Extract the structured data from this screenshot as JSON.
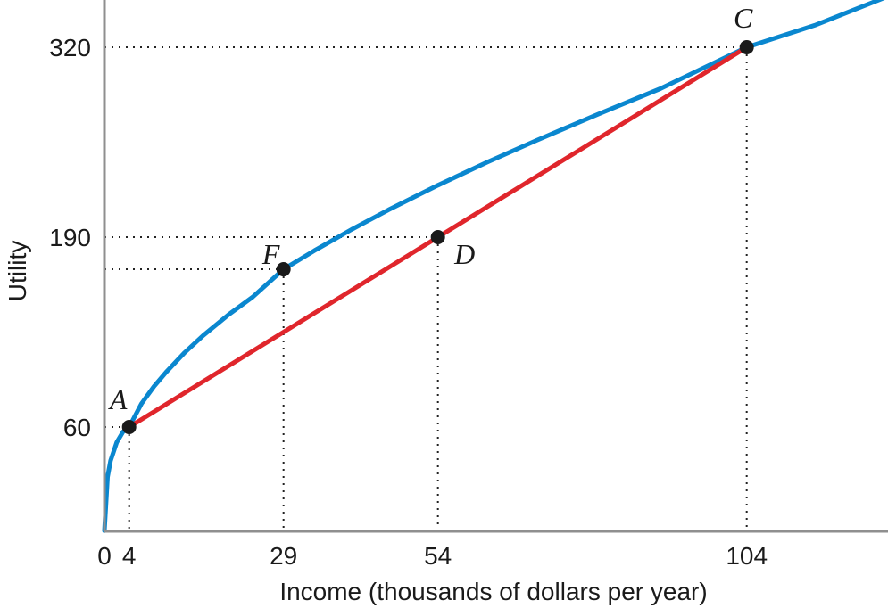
{
  "chart_data": {
    "type": "line",
    "xlabel": "Income (thousands of dollars per year)",
    "ylabel": "Utility",
    "x_ticks": [
      "0",
      "4",
      "29",
      "54",
      "104"
    ],
    "x_tick_values": [
      0,
      4,
      29,
      54,
      104
    ],
    "y_ticks": [
      "60",
      "190",
      "320"
    ],
    "y_tick_values": [
      60,
      190,
      320
    ],
    "xlim": [
      0,
      130
    ],
    "ylim": [
      -11,
      355
    ],
    "grid": false,
    "series": [
      {
        "color": "#0a87cf",
        "style": "curve",
        "x": [
          0,
          0.5,
          1,
          2,
          3,
          4,
          6,
          8,
          10,
          13,
          16,
          20,
          24,
          29,
          34,
          40,
          46,
          54,
          62,
          70,
          80,
          90,
          104,
          115,
          130
        ],
        "y": [
          -11,
          25.8,
          37,
          49.5,
          56.7,
          60,
          76,
          87.7,
          97.6,
          111,
          122.7,
          136.6,
          149,
          168,
          180.8,
          195.2,
          208.7,
          225.5,
          241.3,
          256.3,
          274.3,
          291.6,
          320,
          335,
          360
        ]
      },
      {
        "color": "#e0262c",
        "style": "line",
        "x": [
          4,
          104
        ],
        "y": [
          60,
          320
        ]
      }
    ],
    "points": [
      {
        "label": "A",
        "x": 4,
        "y": 60
      },
      {
        "label": "F",
        "x": 29,
        "y": 168
      },
      {
        "label": "D",
        "x": 54,
        "y": 190
      },
      {
        "label": "C",
        "x": 104,
        "y": 320
      }
    ]
  }
}
